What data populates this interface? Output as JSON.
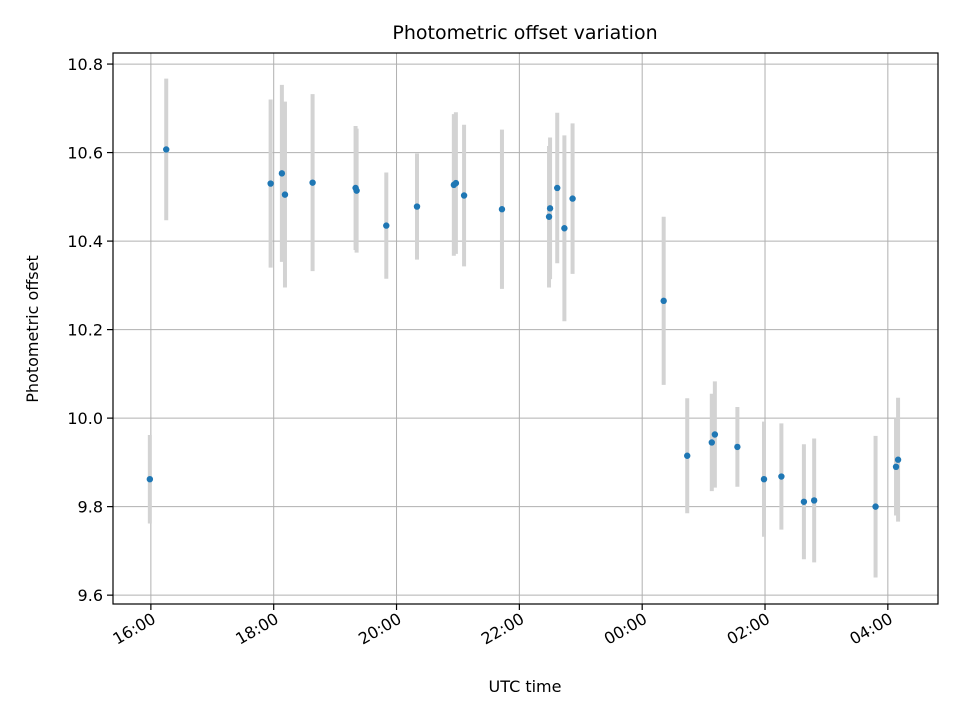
{
  "chart_data": {
    "type": "scatter",
    "title": "Photometric offset variation",
    "xlabel": "UTC time",
    "ylabel": "Photometric offset",
    "x_tick_labels": [
      "16:00",
      "18:00",
      "20:00",
      "22:00",
      "00:00",
      "02:00",
      "04:00"
    ],
    "x_tick_times": [
      "2000-01-01T16:00",
      "2000-01-01T18:00",
      "2000-01-01T20:00",
      "2000-01-01T22:00",
      "2000-01-02T00:00",
      "2000-01-02T02:00",
      "2000-01-02T04:00"
    ],
    "xlim": [
      "2000-01-01T15:23",
      "2000-01-02T04:49"
    ],
    "y_ticks": [
      9.6,
      9.8,
      10.0,
      10.2,
      10.4,
      10.6,
      10.8
    ],
    "y_tick_labels": [
      "9.6",
      "9.8",
      "10.0",
      "10.2",
      "10.4",
      "10.6",
      "10.8"
    ],
    "ylim": [
      9.58,
      10.825
    ],
    "grid": true,
    "marker_color": "#1f77b4",
    "errorbar_color": "#d3d3d3",
    "points": [
      {
        "t": "2000-01-01T15:59",
        "y": 9.862,
        "yerr": 0.1
      },
      {
        "t": "2000-01-01T16:15",
        "y": 10.607,
        "yerr": 0.16
      },
      {
        "t": "2000-01-01T17:57",
        "y": 10.53,
        "yerr": 0.19
      },
      {
        "t": "2000-01-01T18:08",
        "y": 10.553,
        "yerr": 0.2
      },
      {
        "t": "2000-01-01T18:11",
        "y": 10.505,
        "yerr": 0.21
      },
      {
        "t": "2000-01-01T18:38",
        "y": 10.532,
        "yerr": 0.2
      },
      {
        "t": "2000-01-01T19:20",
        "y": 10.52,
        "yerr": 0.14
      },
      {
        "t": "2000-01-01T19:21",
        "y": 10.514,
        "yerr": 0.14
      },
      {
        "t": "2000-01-01T19:50",
        "y": 10.435,
        "yerr": 0.12
      },
      {
        "t": "2000-01-01T20:20",
        "y": 10.478,
        "yerr": 0.12
      },
      {
        "t": "2000-01-01T20:56",
        "y": 10.527,
        "yerr": 0.16
      },
      {
        "t": "2000-01-01T20:58",
        "y": 10.531,
        "yerr": 0.16
      },
      {
        "t": "2000-01-01T21:06",
        "y": 10.503,
        "yerr": 0.16
      },
      {
        "t": "2000-01-01T21:43",
        "y": 10.472,
        "yerr": 0.18
      },
      {
        "t": "2000-01-01T22:29",
        "y": 10.455,
        "yerr": 0.16
      },
      {
        "t": "2000-01-01T22:30",
        "y": 10.474,
        "yerr": 0.16
      },
      {
        "t": "2000-01-01T22:37",
        "y": 10.52,
        "yerr": 0.17
      },
      {
        "t": "2000-01-01T22:44",
        "y": 10.429,
        "yerr": 0.21
      },
      {
        "t": "2000-01-01T22:52",
        "y": 10.496,
        "yerr": 0.17
      },
      {
        "t": "2000-01-02T00:21",
        "y": 10.265,
        "yerr": 0.19
      },
      {
        "t": "2000-01-02T00:44",
        "y": 9.915,
        "yerr": 0.13
      },
      {
        "t": "2000-01-02T01:08",
        "y": 9.945,
        "yerr": 0.11
      },
      {
        "t": "2000-01-02T01:11",
        "y": 9.963,
        "yerr": 0.12
      },
      {
        "t": "2000-01-02T01:33",
        "y": 9.935,
        "yerr": 0.09
      },
      {
        "t": "2000-01-02T01:59",
        "y": 9.862,
        "yerr": 0.13
      },
      {
        "t": "2000-01-02T02:16",
        "y": 9.868,
        "yerr": 0.12
      },
      {
        "t": "2000-01-02T02:38",
        "y": 9.811,
        "yerr": 0.13
      },
      {
        "t": "2000-01-02T02:48",
        "y": 9.814,
        "yerr": 0.14
      },
      {
        "t": "2000-01-02T03:48",
        "y": 9.8,
        "yerr": 0.16
      },
      {
        "t": "2000-01-02T04:08",
        "y": 9.89,
        "yerr": 0.11
      },
      {
        "t": "2000-01-02T04:10",
        "y": 9.906,
        "yerr": 0.14
      }
    ]
  }
}
